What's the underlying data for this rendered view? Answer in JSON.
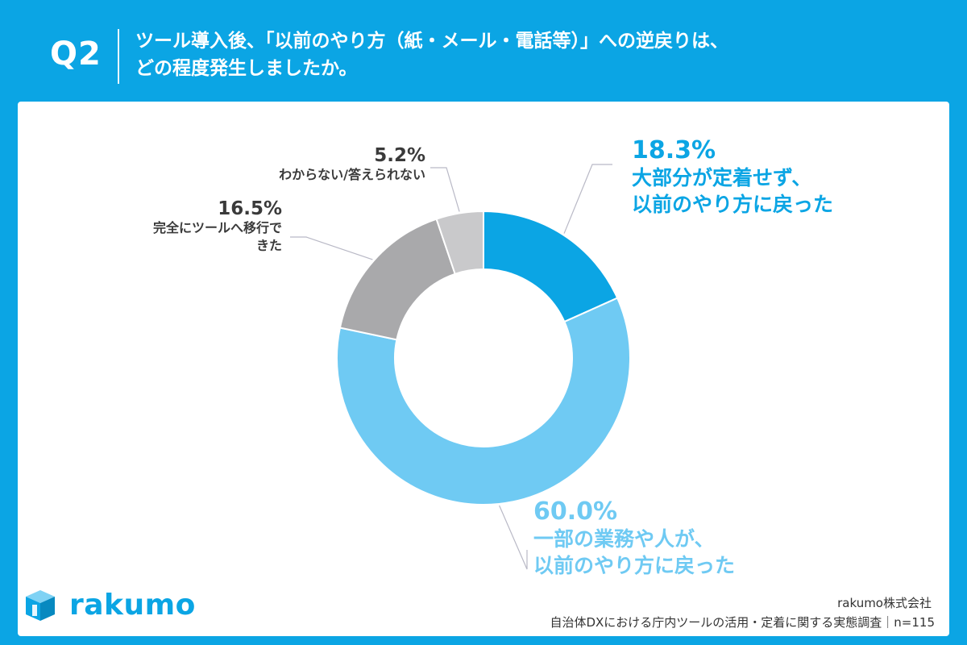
{
  "header": {
    "q_label": "Q2",
    "title_line1": "ツール導入後、「以前のやり方（紙・メール・電話等）」への逆戻りは、",
    "title_line2": "どの程度発生しましたか。"
  },
  "chart_data": {
    "type": "pie",
    "donut": true,
    "title": "",
    "series": [
      {
        "name": "大部分が定着せず、以前のやり方に戻った",
        "value": 18.3,
        "label": "18.3%",
        "caption1": "大部分が定着せず、",
        "caption2": "以前のやり方に戻った",
        "color": "#0ba5e4"
      },
      {
        "name": "一部の業務や人が、以前のやり方に戻った",
        "value": 60.0,
        "label": "60.0%",
        "caption1": "一部の業務や人が、",
        "caption2": "以前のやり方に戻った",
        "color": "#6fcaf3"
      },
      {
        "name": "完全にツールへ移行できた",
        "value": 16.5,
        "label": "16.5%",
        "caption1": "完全にツールへ移行で",
        "caption2": "きた",
        "color": "#a9a9ab"
      },
      {
        "name": "わからない/答えられない",
        "value": 5.2,
        "label": "5.2%",
        "caption1": "わからない/答えられない",
        "color": "#c9c9cb"
      }
    ]
  },
  "footer": {
    "logo_text": "rakumo",
    "company": "rakumo株式会社",
    "survey": "自治体DXにおける庁内ツールの活用・定着に関する実態調査｜n=115"
  }
}
